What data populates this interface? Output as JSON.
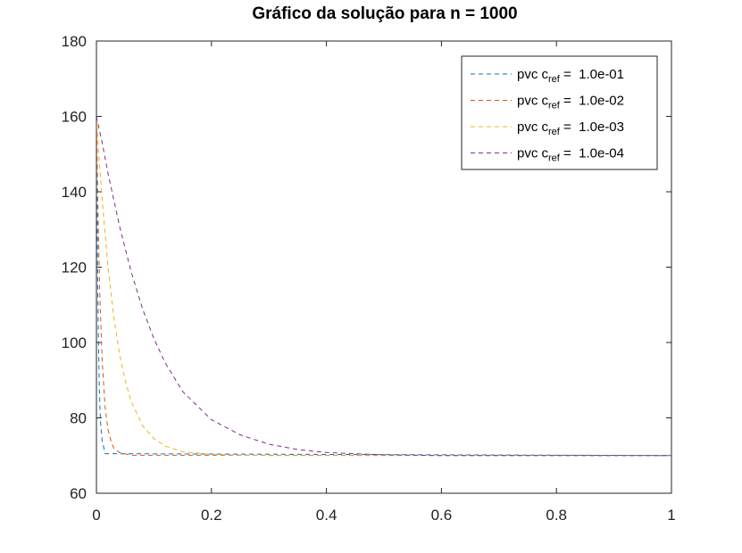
{
  "chart_data": {
    "type": "line",
    "title": "Gráfico da solução para n = 1000",
    "xlabel": "",
    "ylabel": "",
    "xlim": [
      0,
      1
    ],
    "ylim": [
      60,
      180
    ],
    "x_ticks": [
      0,
      0.2,
      0.4,
      0.6,
      0.8,
      1
    ],
    "x_tick_labels": [
      "0",
      "0.2",
      "0.4",
      "0.6",
      "0.8",
      "1"
    ],
    "y_ticks": [
      60,
      80,
      100,
      120,
      140,
      160,
      180
    ],
    "y_tick_labels": [
      "60",
      "80",
      "100",
      "120",
      "140",
      "160",
      "180"
    ],
    "grid": false,
    "legend_position": "top-right",
    "line_style": "dashed",
    "series": [
      {
        "legend_prefix": "pvc c",
        "legend_sub": "ref",
        "legend_value": " =  1.0e-01",
        "color": "#0072bd",
        "x": [
          0,
          0.001,
          0.002,
          0.003,
          0.004,
          0.005,
          0.007,
          0.01,
          0.015,
          1
        ],
        "y": [
          160,
          138,
          120,
          106,
          96,
          88,
          79,
          74,
          70.5,
          70
        ]
      },
      {
        "legend_prefix": "pvc c",
        "legend_sub": "ref",
        "legend_value": " =  1.0e-02",
        "color": "#d95319",
        "x": [
          0,
          0.003,
          0.006,
          0.01,
          0.015,
          0.02,
          0.025,
          0.03,
          0.04,
          0.06,
          1
        ],
        "y": [
          160,
          133,
          112,
          95,
          83,
          77,
          74,
          72,
          70.8,
          70.1,
          70
        ]
      },
      {
        "legend_prefix": "pvc c",
        "legend_sub": "ref",
        "legend_value": " =  1.0e-03",
        "color": "#edb120",
        "x": [
          0,
          0.005,
          0.01,
          0.02,
          0.03,
          0.04,
          0.05,
          0.06,
          0.08,
          0.1,
          0.12,
          0.15,
          0.2,
          0.3,
          1
        ],
        "y": [
          160,
          148,
          138,
          120,
          107,
          97,
          90,
          84.5,
          78,
          74.5,
          72.5,
          71,
          70.3,
          70,
          70
        ]
      },
      {
        "legend_prefix": "pvc c",
        "legend_sub": "ref",
        "legend_value": " =  1.0e-04",
        "color": "#7e2f8e",
        "x": [
          0,
          0.01,
          0.02,
          0.04,
          0.06,
          0.08,
          0.1,
          0.12,
          0.15,
          0.2,
          0.25,
          0.3,
          0.35,
          0.4,
          0.5,
          0.6,
          1
        ],
        "y": [
          160,
          153,
          145,
          131,
          119,
          109,
          101,
          94.5,
          87,
          79.5,
          75.5,
          73,
          71.6,
          70.8,
          70.2,
          70,
          70
        ]
      }
    ]
  }
}
